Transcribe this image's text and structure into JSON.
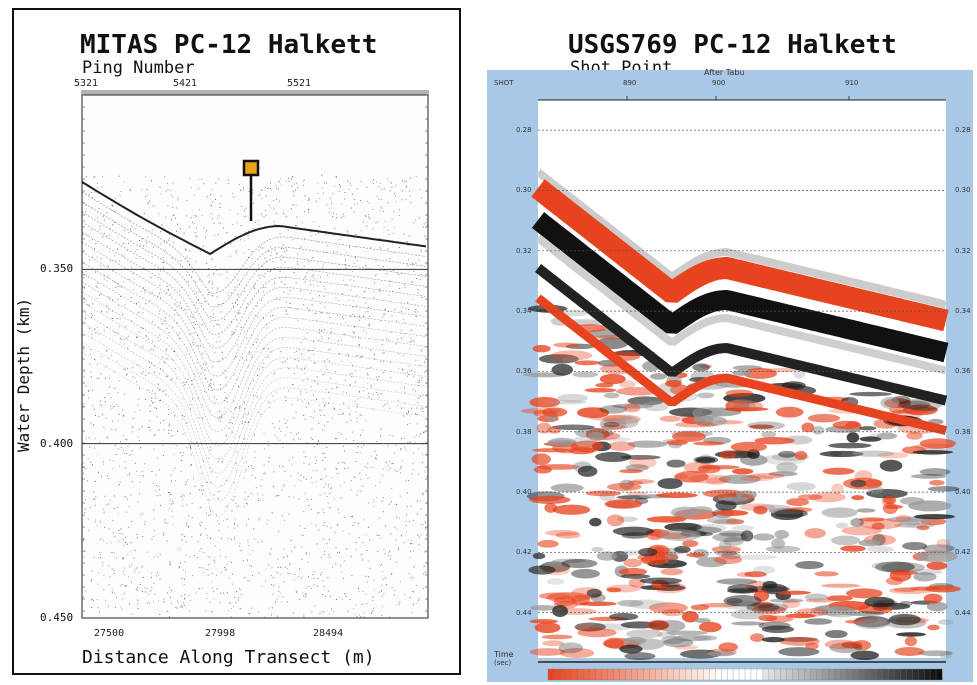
{
  "chart_data": [
    {
      "type": "heatmap",
      "title": "MITAS PC-12 Halkett",
      "subtitle": "Ping Number",
      "xlabel": "Distance Along Transect (m)",
      "ylabel": "Water Depth (km)",
      "top_ticks": [
        "5321",
        "5421",
        "5521"
      ],
      "bottom_ticks": [
        "27500",
        "27998",
        "28494"
      ],
      "y_ticks": [
        "0.350",
        "0.400",
        "0.450"
      ],
      "ylim": [
        0.3,
        0.45
      ],
      "colors": {
        "trace": "#1a1a1a",
        "marker": "#e8a31c"
      }
    },
    {
      "type": "heatmap",
      "title": "USGS769 PC-12 Halkett",
      "subtitle": "Shot Point",
      "overlay_text": "After Tabu",
      "corner_label": "SHOT",
      "time_label": "Time",
      "time_unit": "(sec)",
      "top_ticks": [
        "890",
        "900",
        "910"
      ],
      "y_ticks": [
        "0.28",
        "0.30",
        "0.32",
        "0.34",
        "0.36",
        "0.38",
        "0.40",
        "0.42",
        "0.44"
      ],
      "ylim": [
        0.27,
        0.455
      ],
      "colors": {
        "positive": "#e8431f",
        "negative": "#111111",
        "frame": "#a9c8e6"
      }
    }
  ]
}
